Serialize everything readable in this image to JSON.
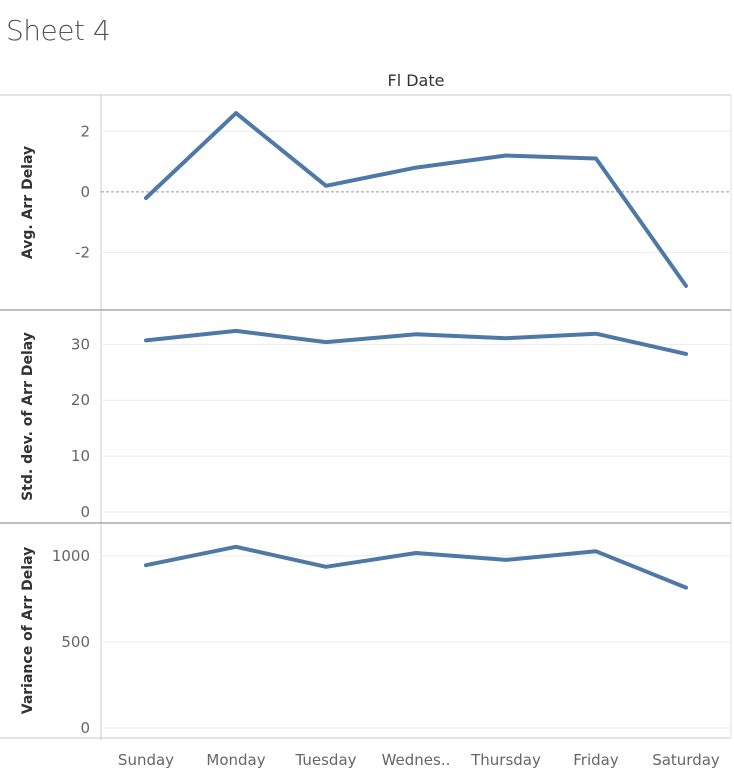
{
  "sheet": {
    "title": "Sheet 4"
  },
  "chart_data": {
    "type": "line",
    "column_header": "Fl Date",
    "categories": [
      "Sunday",
      "Monday",
      "Tuesday",
      "Wednes..",
      "Thursday",
      "Friday",
      "Saturday"
    ],
    "line_color": "#4e79a7",
    "panes": [
      {
        "ylabel": "Avg. Arr Delay",
        "ylim": [
          -3.5,
          2.8
        ],
        "ticks": [
          2,
          0,
          -2
        ],
        "zero_line": true,
        "values": [
          -0.2,
          2.6,
          0.2,
          0.8,
          1.2,
          1.1,
          -3.1
        ]
      },
      {
        "ylabel": "Std. dev. of Arr Delay",
        "ylim": [
          0,
          34
        ],
        "ticks": [
          30,
          20,
          10,
          0
        ],
        "zero_line": false,
        "values": [
          30.7,
          32.4,
          30.4,
          31.8,
          31.1,
          31.9,
          28.3
        ]
      },
      {
        "ylabel": "Variance of Arr Delay",
        "ylim": [
          0,
          1110
        ],
        "ticks": [
          1000,
          500,
          0
        ],
        "zero_line": false,
        "values": [
          946,
          1053,
          937,
          1017,
          977,
          1027,
          816
        ]
      }
    ]
  }
}
